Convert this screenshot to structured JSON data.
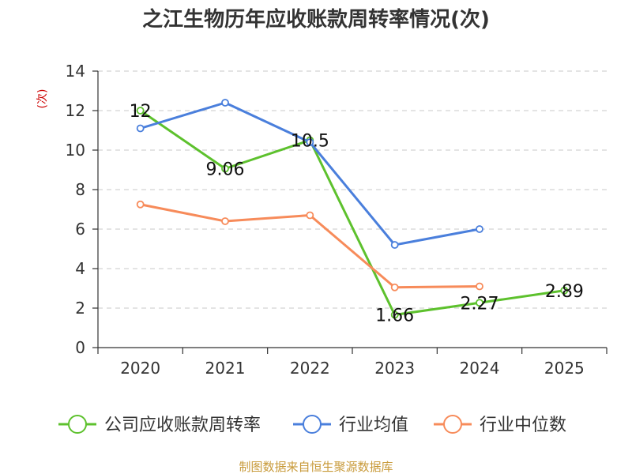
{
  "chart_data": {
    "type": "line",
    "title": "之江生物历年应收账款周转率情况(次)",
    "ylabel": "(次)",
    "xlabel": "",
    "categories": [
      "2020",
      "2021",
      "2022",
      "2023",
      "2024",
      "2025"
    ],
    "ylim": [
      0,
      14
    ],
    "yticks": [
      0,
      2,
      4,
      6,
      8,
      10,
      12,
      14
    ],
    "grid": true,
    "legend_position": "bottom",
    "series": [
      {
        "name": "公司应收账款周转率",
        "color": "#5dc12d",
        "values": [
          12,
          9.06,
          10.5,
          1.66,
          2.27,
          2.89
        ],
        "labels": [
          "12",
          "9.06",
          "10.5",
          "1.66",
          "2.27",
          "2.89"
        ],
        "show_labels": true
      },
      {
        "name": "行业均值",
        "color": "#4a7fdc",
        "values": [
          11.1,
          12.4,
          10.4,
          5.2,
          6.0,
          null
        ],
        "show_labels": false
      },
      {
        "name": "行业中位数",
        "color": "#f78b5a",
        "values": [
          7.25,
          6.4,
          6.7,
          3.05,
          3.1,
          null
        ],
        "show_labels": false
      }
    ],
    "source": "制图数据来自恒生聚源数据库",
    "colors": {
      "ylabel": "#cc0000",
      "source": "#c89a3a",
      "axis": "#333333",
      "grid": "#c8c8c8"
    }
  }
}
